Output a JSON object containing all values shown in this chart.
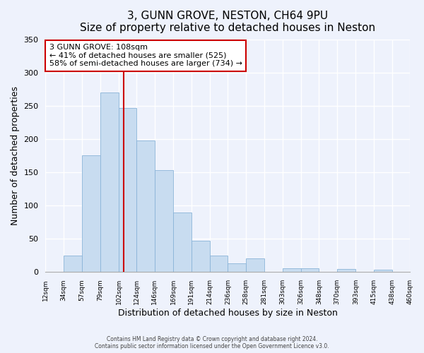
{
  "title": "3, GUNN GROVE, NESTON, CH64 9PU",
  "subtitle": "Size of property relative to detached houses in Neston",
  "xlabel": "Distribution of detached houses by size in Neston",
  "ylabel": "Number of detached properties",
  "bar_edges": [
    12,
    34,
    57,
    79,
    102,
    124,
    146,
    169,
    191,
    214,
    236,
    258,
    281,
    303,
    326,
    348,
    370,
    393,
    415,
    438,
    460
  ],
  "bar_values": [
    0,
    25,
    175,
    270,
    247,
    198,
    153,
    89,
    47,
    25,
    13,
    21,
    0,
    6,
    6,
    0,
    5,
    0,
    4,
    0,
    0
  ],
  "bar_color": "#c8dcf0",
  "bar_edge_color": "#8ab4d8",
  "ylim": [
    0,
    350
  ],
  "yticks": [
    0,
    50,
    100,
    150,
    200,
    250,
    300,
    350
  ],
  "vline_x": 108,
  "vline_color": "#cc0000",
  "annotation_text": "3 GUNN GROVE: 108sqm\n← 41% of detached houses are smaller (525)\n58% of semi-detached houses are larger (734) →",
  "annotation_box_color": "#ffffff",
  "annotation_box_edge": "#cc0000",
  "footer_line1": "Contains HM Land Registry data © Crown copyright and database right 2024.",
  "footer_line2": "Contains public sector information licensed under the Open Government Licence v3.0.",
  "background_color": "#eef2fc",
  "tick_labels": [
    "12sqm",
    "34sqm",
    "57sqm",
    "79sqm",
    "102sqm",
    "124sqm",
    "146sqm",
    "169sqm",
    "191sqm",
    "214sqm",
    "236sqm",
    "258sqm",
    "281sqm",
    "303sqm",
    "326sqm",
    "348sqm",
    "370sqm",
    "393sqm",
    "415sqm",
    "438sqm",
    "460sqm"
  ],
  "title_fontsize": 11,
  "ylabel_fontsize": 9,
  "xlabel_fontsize": 9
}
